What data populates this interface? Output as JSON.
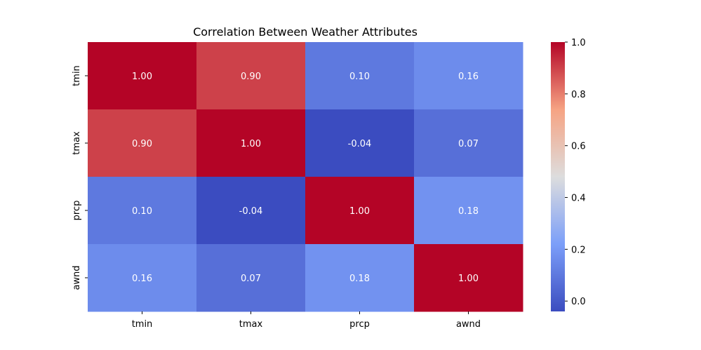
{
  "chart_data": {
    "type": "heatmap",
    "title": "Correlation Between Weather Attributes",
    "x_labels": [
      "tmin",
      "tmax",
      "prcp",
      "awnd"
    ],
    "y_labels": [
      "tmin",
      "tmax",
      "prcp",
      "awnd"
    ],
    "values": [
      [
        1.0,
        0.9,
        0.1,
        0.16
      ],
      [
        0.9,
        1.0,
        -0.04,
        0.07
      ],
      [
        0.1,
        -0.04,
        1.0,
        0.18
      ],
      [
        0.16,
        0.07,
        0.18,
        1.0
      ]
    ],
    "annotations": [
      [
        "1.00",
        "0.90",
        "0.10",
        "0.16"
      ],
      [
        "0.90",
        "1.00",
        "-0.04",
        "0.07"
      ],
      [
        "0.10",
        "-0.04",
        "1.00",
        "0.18"
      ],
      [
        "0.16",
        "0.07",
        "0.18",
        "1.00"
      ]
    ],
    "colormap": "coolwarm",
    "vmin": -0.04,
    "vmax": 1.0,
    "colorbar": {
      "ticks": [
        0.0,
        0.2,
        0.4,
        0.6,
        0.8,
        1.0
      ],
      "tick_labels": [
        "0.0",
        "0.2",
        "0.4",
        "0.6",
        "0.8",
        "1.0"
      ],
      "placement": "right"
    },
    "grid": false
  }
}
